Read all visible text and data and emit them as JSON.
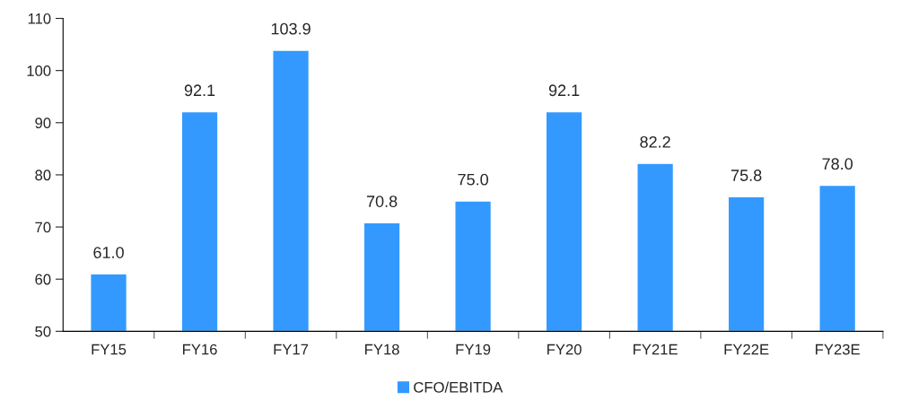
{
  "chart_data": {
    "type": "bar",
    "categories": [
      "FY15",
      "FY16",
      "FY17",
      "FY18",
      "FY19",
      "FY20",
      "FY21E",
      "FY22E",
      "FY23E"
    ],
    "series": [
      {
        "name": "CFO/EBITDA",
        "color": "#3399ff",
        "values": [
          61.0,
          92.1,
          103.9,
          70.8,
          75.0,
          92.1,
          82.2,
          75.8,
          78.0
        ],
        "value_labels": [
          "61.0",
          "92.1",
          "103.9",
          "70.8",
          "75.0",
          "92.1",
          "82.2",
          "75.8",
          "78.0"
        ]
      }
    ],
    "ylim": [
      50,
      110
    ],
    "yticks": [
      50,
      60,
      70,
      80,
      90,
      100,
      110
    ],
    "grid": false,
    "legend": "bottom"
  }
}
